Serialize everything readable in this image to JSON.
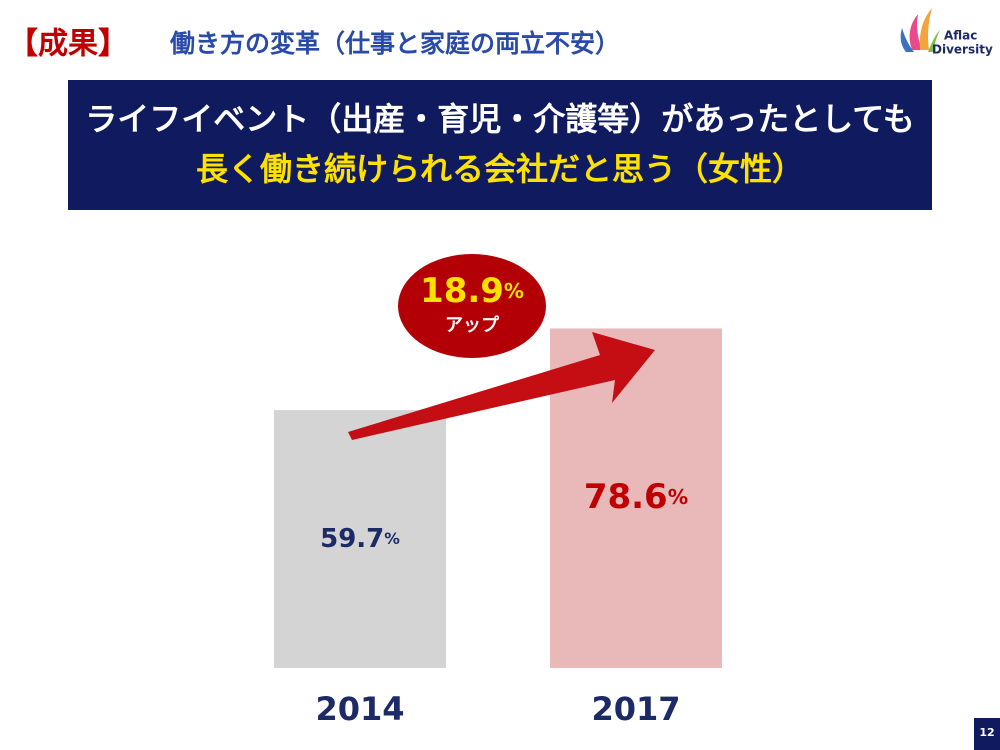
{
  "header": {
    "tag": "【成果】",
    "title": "働き方の変革（仕事と家庭の両立不安）"
  },
  "logo": {
    "line1": "Aflac",
    "line2": "Diversity"
  },
  "banner": {
    "line1": "ライフイベント（出産・育児・介護等）があったとしても",
    "line2": "長く働き続けられる会社だと思う（女性）"
  },
  "page_number": "12",
  "chart_data": {
    "type": "bar",
    "categories": [
      "2014",
      "2017"
    ],
    "values": [
      59.7,
      78.6
    ],
    "value_labels": [
      "59.7%",
      "78.6%"
    ],
    "colors": [
      "#d4d4d4",
      "#e9b8b9"
    ],
    "label_colors": [
      "#1c2a66",
      "#c00000"
    ],
    "ylim": [
      0,
      100
    ],
    "annotation": {
      "value": "18.9%",
      "text": "アップ"
    }
  }
}
